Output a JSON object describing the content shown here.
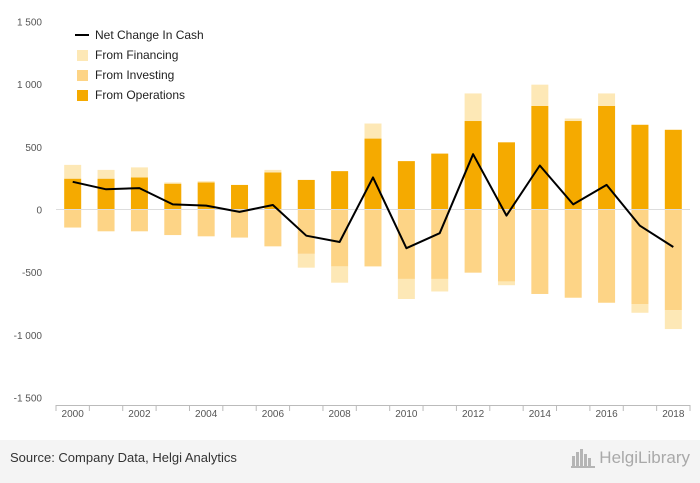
{
  "chart_data": {
    "type": "bar",
    "x": [
      "2000",
      "2001",
      "2002",
      "2003",
      "2004",
      "2005",
      "2006",
      "2007",
      "2008",
      "2009",
      "2010",
      "2011",
      "2012",
      "2013",
      "2014",
      "2015",
      "2016",
      "2017",
      "2018"
    ],
    "xticks": [
      "2000",
      "2002",
      "2004",
      "2006",
      "2008",
      "2010",
      "2012",
      "2014",
      "2016",
      "2018"
    ],
    "yticks": [
      "1 500",
      "1 000",
      "500",
      "0",
      "-500",
      "-1 000",
      "-1 500"
    ],
    "ylim": [
      -1500,
      1500
    ],
    "stacked": true,
    "series": [
      {
        "name": "From Operations",
        "type": "bar",
        "color": "#f5aa00",
        "values": [
          250,
          250,
          260,
          210,
          220,
          200,
          300,
          240,
          310,
          570,
          390,
          450,
          710,
          540,
          830,
          710,
          830,
          680,
          640
        ]
      },
      {
        "name": "From Financing",
        "type": "bar",
        "color": "#fde8b6",
        "values": [
          110,
          70,
          80,
          10,
          10,
          0,
          20,
          -110,
          -130,
          120,
          -160,
          -100,
          220,
          -30,
          170,
          20,
          100,
          -70,
          -150
        ]
      },
      {
        "name": "From Investing",
        "type": "bar",
        "color": "#fdd486",
        "values": [
          -140,
          -170,
          -170,
          -200,
          -210,
          -220,
          -290,
          -350,
          -450,
          -450,
          -550,
          -550,
          -500,
          -570,
          -670,
          -700,
          -740,
          -750,
          -800
        ]
      },
      {
        "name": "Net Change In Cash",
        "type": "line",
        "color": "#000000",
        "values": [
          225,
          165,
          175,
          45,
          35,
          -15,
          40,
          -205,
          -255,
          260,
          -305,
          -185,
          445,
          -45,
          355,
          45,
          200,
          -125,
          -295
        ]
      }
    ],
    "legend": [
      "Net Change In Cash",
      "From Financing",
      "From Investing",
      "From Operations"
    ],
    "legend_position": "top-left",
    "grid": false
  },
  "footer": {
    "source": "Source: Company Data, Helgi Analytics",
    "logo_text": "HelgiLibrary"
  }
}
